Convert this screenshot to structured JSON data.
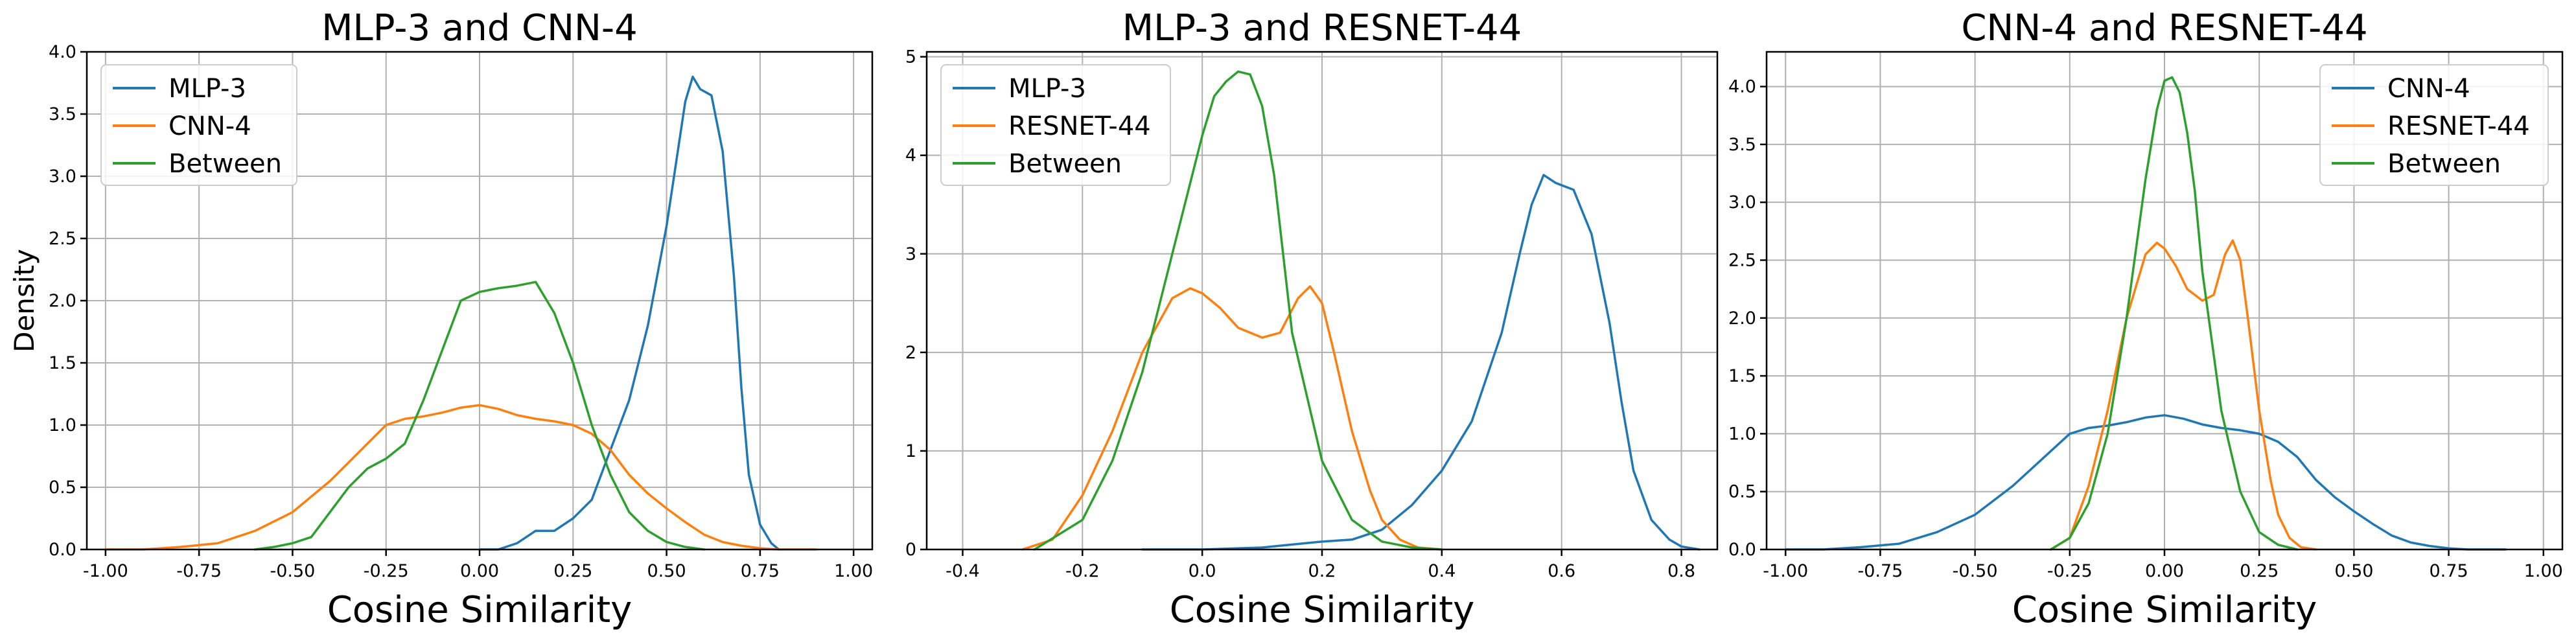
{
  "chart_data": [
    {
      "type": "line",
      "title": "MLP-3 and CNN-4",
      "xlabel": "Cosine Similarity",
      "ylabel": "Density",
      "xlim": [
        -1.05,
        1.05
      ],
      "ylim": [
        0,
        4.0
      ],
      "xticks": [
        -1.0,
        -0.75,
        -0.5,
        -0.25,
        0.0,
        0.25,
        0.5,
        0.75,
        1.0
      ],
      "xtick_labels": [
        "-1.00",
        "-0.75",
        "-0.50",
        "-0.25",
        "0.00",
        "0.25",
        "0.50",
        "0.75",
        "1.00"
      ],
      "yticks": [
        0,
        0.5,
        1.0,
        1.5,
        2.0,
        2.5,
        3.0,
        3.5,
        4.0
      ],
      "ytick_labels": [
        "0.0",
        "0.5",
        "1.0",
        "1.5",
        "2.0",
        "2.5",
        "3.0",
        "3.5",
        "4.0"
      ],
      "grid": true,
      "legend": "top-left",
      "series": [
        {
          "name": "MLP-3",
          "color": "#1f77b4",
          "x": [
            0.0,
            0.05,
            0.1,
            0.15,
            0.2,
            0.25,
            0.3,
            0.35,
            0.4,
            0.45,
            0.5,
            0.53,
            0.55,
            0.57,
            0.59,
            0.62,
            0.65,
            0.68,
            0.7,
            0.72,
            0.75,
            0.78,
            0.8
          ],
          "y": [
            0.0,
            0.0,
            0.05,
            0.15,
            0.15,
            0.25,
            0.4,
            0.8,
            1.2,
            1.8,
            2.6,
            3.2,
            3.6,
            3.8,
            3.7,
            3.65,
            3.2,
            2.2,
            1.3,
            0.6,
            0.2,
            0.05,
            0.0
          ]
        },
        {
          "name": "CNN-4",
          "color": "#ff7f0e",
          "x": [
            -1.0,
            -0.9,
            -0.8,
            -0.7,
            -0.6,
            -0.5,
            -0.4,
            -0.35,
            -0.3,
            -0.25,
            -0.2,
            -0.15,
            -0.1,
            -0.05,
            0.0,
            0.05,
            0.1,
            0.15,
            0.2,
            0.25,
            0.3,
            0.35,
            0.4,
            0.45,
            0.5,
            0.55,
            0.6,
            0.65,
            0.7,
            0.75,
            0.8,
            0.9
          ],
          "y": [
            0.0,
            0.0,
            0.02,
            0.05,
            0.15,
            0.3,
            0.55,
            0.7,
            0.85,
            1.0,
            1.05,
            1.07,
            1.1,
            1.14,
            1.16,
            1.13,
            1.08,
            1.05,
            1.03,
            1.0,
            0.93,
            0.8,
            0.6,
            0.45,
            0.33,
            0.22,
            0.12,
            0.06,
            0.03,
            0.01,
            0.0,
            0.0
          ]
        },
        {
          "name": "Between",
          "color": "#2ca02c",
          "x": [
            -0.6,
            -0.55,
            -0.5,
            -0.45,
            -0.4,
            -0.35,
            -0.3,
            -0.25,
            -0.2,
            -0.15,
            -0.1,
            -0.05,
            0.0,
            0.05,
            0.1,
            0.15,
            0.2,
            0.25,
            0.3,
            0.35,
            0.4,
            0.45,
            0.5,
            0.55,
            0.6
          ],
          "y": [
            0.0,
            0.02,
            0.05,
            0.1,
            0.3,
            0.5,
            0.65,
            0.73,
            0.85,
            1.2,
            1.6,
            2.0,
            2.07,
            2.1,
            2.12,
            2.15,
            1.9,
            1.5,
            1.0,
            0.6,
            0.3,
            0.15,
            0.06,
            0.02,
            0.0
          ]
        }
      ]
    },
    {
      "type": "line",
      "title": "MLP-3 and RESNET-44",
      "xlabel": "Cosine Similarity",
      "ylabel": "",
      "xlim": [
        -0.46,
        0.86
      ],
      "ylim": [
        0,
        5.05
      ],
      "xticks": [
        -0.4,
        -0.2,
        0.0,
        0.2,
        0.4,
        0.6,
        0.8
      ],
      "xtick_labels": [
        "-0.4",
        "-0.2",
        "0.0",
        "0.2",
        "0.4",
        "0.6",
        "0.8"
      ],
      "yticks": [
        0,
        1,
        2,
        3,
        4,
        5
      ],
      "ytick_labels": [
        "0",
        "1",
        "2",
        "3",
        "4",
        "5"
      ],
      "grid": true,
      "legend": "top-left",
      "series": [
        {
          "name": "MLP-3",
          "color": "#1f77b4",
          "x": [
            -0.1,
            0.0,
            0.1,
            0.15,
            0.2,
            0.25,
            0.3,
            0.35,
            0.4,
            0.45,
            0.5,
            0.53,
            0.55,
            0.57,
            0.59,
            0.62,
            0.65,
            0.68,
            0.7,
            0.72,
            0.75,
            0.78,
            0.8,
            0.83
          ],
          "y": [
            0.0,
            0.0,
            0.02,
            0.05,
            0.08,
            0.1,
            0.2,
            0.45,
            0.8,
            1.3,
            2.2,
            3.0,
            3.5,
            3.8,
            3.72,
            3.65,
            3.2,
            2.3,
            1.5,
            0.8,
            0.3,
            0.1,
            0.03,
            0.0
          ]
        },
        {
          "name": "RESNET-44",
          "color": "#ff7f0e",
          "x": [
            -0.3,
            -0.25,
            -0.2,
            -0.15,
            -0.1,
            -0.05,
            -0.02,
            0.0,
            0.03,
            0.06,
            0.1,
            0.13,
            0.16,
            0.18,
            0.2,
            0.22,
            0.25,
            0.28,
            0.3,
            0.33,
            0.36,
            0.4
          ],
          "y": [
            0.0,
            0.1,
            0.55,
            1.2,
            2.0,
            2.55,
            2.65,
            2.6,
            2.45,
            2.25,
            2.15,
            2.2,
            2.55,
            2.67,
            2.5,
            2.0,
            1.2,
            0.6,
            0.3,
            0.1,
            0.02,
            0.0
          ]
        },
        {
          "name": "Between",
          "color": "#2ca02c",
          "x": [
            -0.28,
            -0.2,
            -0.15,
            -0.1,
            -0.05,
            0.0,
            0.02,
            0.04,
            0.06,
            0.08,
            0.1,
            0.12,
            0.15,
            0.2,
            0.25,
            0.3,
            0.35,
            0.4
          ],
          "y": [
            0.0,
            0.3,
            0.9,
            1.8,
            3.0,
            4.2,
            4.6,
            4.75,
            4.85,
            4.82,
            4.5,
            3.8,
            2.2,
            0.9,
            0.3,
            0.08,
            0.02,
            0.0
          ]
        }
      ]
    },
    {
      "type": "line",
      "title": "CNN-4 and RESNET-44",
      "xlabel": "Cosine Similarity",
      "ylabel": "",
      "xlim": [
        -1.05,
        1.05
      ],
      "ylim": [
        0,
        4.3
      ],
      "xticks": [
        -1.0,
        -0.75,
        -0.5,
        -0.25,
        0.0,
        0.25,
        0.5,
        0.75,
        1.0
      ],
      "xtick_labels": [
        "-1.00",
        "-0.75",
        "-0.50",
        "-0.25",
        "0.00",
        "0.25",
        "0.50",
        "0.75",
        "1.00"
      ],
      "yticks": [
        0,
        0.5,
        1.0,
        1.5,
        2.0,
        2.5,
        3.0,
        3.5,
        4.0
      ],
      "ytick_labels": [
        "0.0",
        "0.5",
        "1.0",
        "1.5",
        "2.0",
        "2.5",
        "3.0",
        "3.5",
        "4.0"
      ],
      "grid": true,
      "legend": "top-right",
      "series": [
        {
          "name": "CNN-4",
          "color": "#1f77b4",
          "x": [
            -1.0,
            -0.9,
            -0.8,
            -0.7,
            -0.6,
            -0.5,
            -0.4,
            -0.35,
            -0.3,
            -0.25,
            -0.2,
            -0.15,
            -0.1,
            -0.05,
            0.0,
            0.05,
            0.1,
            0.15,
            0.2,
            0.25,
            0.3,
            0.35,
            0.4,
            0.45,
            0.5,
            0.55,
            0.6,
            0.65,
            0.7,
            0.75,
            0.8,
            0.9
          ],
          "y": [
            0.0,
            0.0,
            0.02,
            0.05,
            0.15,
            0.3,
            0.55,
            0.7,
            0.85,
            1.0,
            1.05,
            1.07,
            1.1,
            1.14,
            1.16,
            1.13,
            1.08,
            1.05,
            1.03,
            1.0,
            0.93,
            0.8,
            0.6,
            0.45,
            0.33,
            0.22,
            0.12,
            0.06,
            0.03,
            0.01,
            0.0,
            0.0
          ]
        },
        {
          "name": "RESNET-44",
          "color": "#ff7f0e",
          "x": [
            -0.3,
            -0.25,
            -0.2,
            -0.15,
            -0.1,
            -0.05,
            -0.02,
            0.0,
            0.03,
            0.06,
            0.1,
            0.13,
            0.16,
            0.18,
            0.2,
            0.22,
            0.25,
            0.28,
            0.3,
            0.33,
            0.36,
            0.4
          ],
          "y": [
            0.0,
            0.1,
            0.55,
            1.2,
            2.0,
            2.55,
            2.65,
            2.6,
            2.45,
            2.25,
            2.15,
            2.2,
            2.55,
            2.67,
            2.5,
            2.0,
            1.2,
            0.6,
            0.3,
            0.1,
            0.02,
            0.0
          ]
        },
        {
          "name": "Between",
          "color": "#2ca02c",
          "x": [
            -0.3,
            -0.25,
            -0.2,
            -0.15,
            -0.1,
            -0.05,
            -0.02,
            0.0,
            0.02,
            0.04,
            0.06,
            0.08,
            0.1,
            0.15,
            0.2,
            0.25,
            0.3,
            0.35
          ],
          "y": [
            0.0,
            0.1,
            0.4,
            1.0,
            2.0,
            3.2,
            3.8,
            4.05,
            4.08,
            3.95,
            3.6,
            3.1,
            2.4,
            1.2,
            0.5,
            0.15,
            0.04,
            0.0
          ]
        }
      ]
    }
  ]
}
